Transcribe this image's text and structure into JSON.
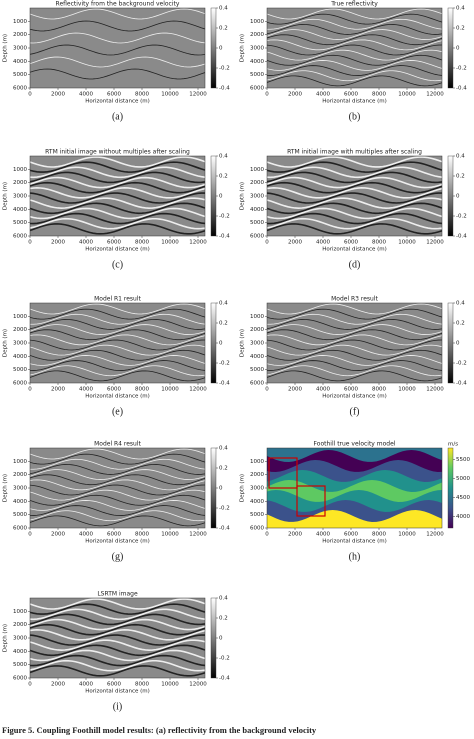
{
  "figure": {
    "xlabel": "Horizontal distance (m)",
    "ylabel": "Depth (m)",
    "xlim": [
      0,
      12500
    ],
    "ylim": [
      0,
      6000
    ],
    "xticks": [
      0,
      2000,
      4000,
      6000,
      8000,
      10000,
      12000
    ],
    "yticks": [
      1000,
      2000,
      3000,
      4000,
      5000,
      6000
    ],
    "panels": [
      {
        "title": "Reflectivity from the background velocity",
        "label": "(a)",
        "clim": [
          -0.4,
          0.4
        ],
        "cticks": [
          0.4,
          0.2,
          0,
          -0.2,
          -0.4
        ]
      },
      {
        "title": "True reflectivity",
        "label": "(b)",
        "clim": [
          -0.4,
          0.4
        ],
        "cticks": [
          0.4,
          0.2,
          0,
          -0.2,
          -0.4
        ]
      },
      {
        "title": "RTM initial image without multiples after scaling",
        "label": "(c)",
        "clim": [
          -0.4,
          0.4
        ],
        "cticks": [
          0.4,
          0.2,
          0,
          -0.2,
          -0.4
        ]
      },
      {
        "title": "RTM initial image with multiples after scaling",
        "label": "(d)",
        "clim": [
          -0.4,
          0.4
        ],
        "cticks": [
          0.4,
          0.2,
          0,
          -0.2,
          -0.4
        ]
      },
      {
        "title": "Model R1 result",
        "label": "(e)",
        "clim": [
          -0.4,
          0.4
        ],
        "cticks": [
          0.4,
          0.2,
          0,
          -0.2,
          -0.4
        ]
      },
      {
        "title": "Model R3 result",
        "label": "(f)",
        "clim": [
          -0.4,
          0.4
        ],
        "cticks": [
          0.4,
          0.2,
          0,
          -0.2,
          -0.4
        ]
      },
      {
        "title": "Model R4 result",
        "label": "(g)",
        "clim": [
          -0.4,
          0.4
        ],
        "cticks": [
          0.4,
          0.2,
          0,
          -0.2,
          -0.4
        ]
      },
      {
        "title": "Foothill true velocity model",
        "label": "(h)",
        "clim": [
          3700,
          5800
        ],
        "cticks": [
          5500,
          5000,
          4500,
          4000
        ],
        "cunit": "m/s"
      },
      {
        "title": "LSRTM image",
        "label": "(i)",
        "clim": [
          -0.4,
          0.4
        ],
        "cticks": [
          0.4,
          0.2,
          0,
          -0.2,
          -0.4
        ]
      }
    ],
    "caption": "Figure 5. Coupling Foothill model results: (a) reflectivity from the background velocity"
  }
}
